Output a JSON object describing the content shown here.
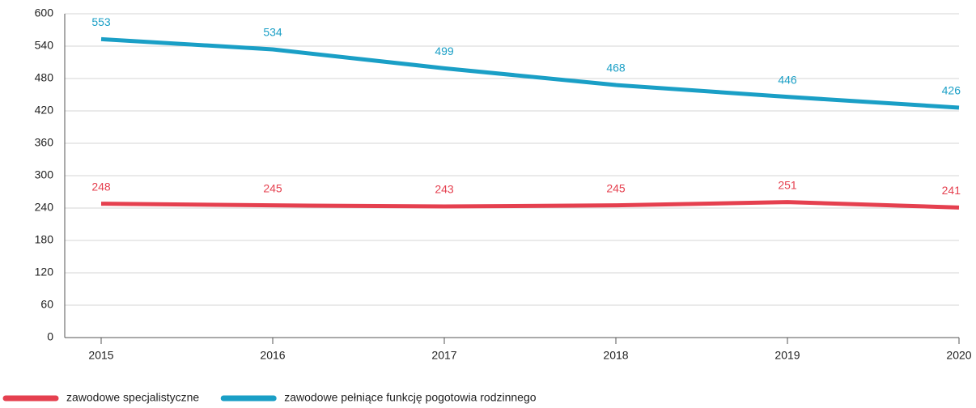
{
  "chart_data": {
    "type": "line",
    "categories": [
      "2015",
      "2016",
      "2017",
      "2018",
      "2019",
      "2020"
    ],
    "series": [
      {
        "name": "zawodowe specjalistyczne",
        "color": "#e5404f",
        "values": [
          248,
          245,
          243,
          245,
          251,
          241
        ]
      },
      {
        "name": "zawodowe pełniące funkcję pogotowia rodzinnego",
        "color": "#1a9fc6",
        "values": [
          553,
          534,
          499,
          468,
          446,
          426
        ]
      }
    ],
    "ylim": [
      0,
      600
    ],
    "yticks": [
      0,
      60,
      120,
      180,
      240,
      300,
      360,
      420,
      480,
      540,
      600
    ],
    "grid": true,
    "legend": "bottom"
  }
}
